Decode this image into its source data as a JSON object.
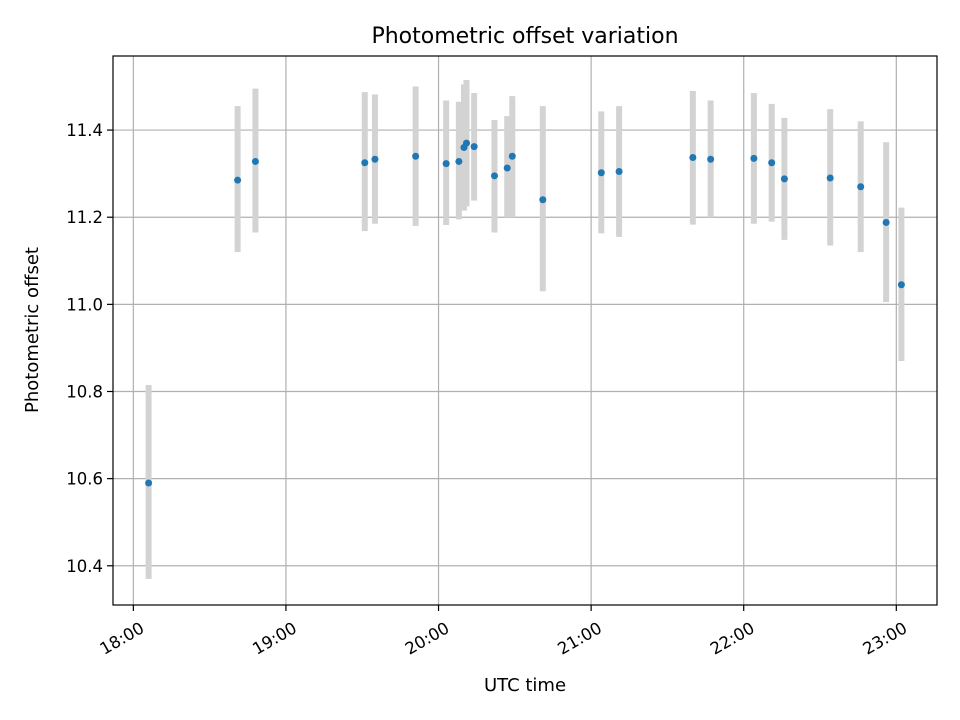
{
  "chart_data": {
    "type": "scatter",
    "title": "Photometric offset variation",
    "xlabel": "UTC time",
    "ylabel": "Photometric offset",
    "xlim": [
      "17:52",
      "23:16"
    ],
    "ylim": [
      10.31,
      11.57
    ],
    "x_ticks": [
      "18:00",
      "19:00",
      "20:00",
      "21:00",
      "22:00",
      "23:00"
    ],
    "y_ticks": [
      10.4,
      10.6,
      10.8,
      11.0,
      11.2,
      11.4
    ],
    "grid": true,
    "point_color": "#1f77b4",
    "errorbar_color": "#d3d3d3",
    "points": [
      {
        "x": "18:06",
        "y": 10.59,
        "ylo": 10.37,
        "yhi": 10.815
      },
      {
        "x": "18:41",
        "y": 11.285,
        "ylo": 11.12,
        "yhi": 11.455
      },
      {
        "x": "18:48",
        "y": 11.328,
        "ylo": 11.165,
        "yhi": 11.495
      },
      {
        "x": "19:31",
        "y": 11.325,
        "ylo": 11.168,
        "yhi": 11.487
      },
      {
        "x": "19:35",
        "y": 11.333,
        "ylo": 11.185,
        "yhi": 11.482
      },
      {
        "x": "19:51",
        "y": 11.34,
        "ylo": 11.18,
        "yhi": 11.5
      },
      {
        "x": "20:03",
        "y": 11.323,
        "ylo": 11.182,
        "yhi": 11.468
      },
      {
        "x": "20:08",
        "y": 11.328,
        "ylo": 11.195,
        "yhi": 11.465
      },
      {
        "x": "20:10",
        "y": 11.36,
        "ylo": 11.215,
        "yhi": 11.505
      },
      {
        "x": "20:11",
        "y": 11.37,
        "ylo": 11.225,
        "yhi": 11.515
      },
      {
        "x": "20:14",
        "y": 11.362,
        "ylo": 11.238,
        "yhi": 11.485
      },
      {
        "x": "20:22",
        "y": 11.295,
        "ylo": 11.165,
        "yhi": 11.423
      },
      {
        "x": "20:27",
        "y": 11.313,
        "ylo": 11.2,
        "yhi": 11.432
      },
      {
        "x": "20:29",
        "y": 11.34,
        "ylo": 11.2,
        "yhi": 11.478
      },
      {
        "x": "20:41",
        "y": 11.24,
        "ylo": 11.03,
        "yhi": 11.455
      },
      {
        "x": "21:04",
        "y": 11.302,
        "ylo": 11.163,
        "yhi": 11.443
      },
      {
        "x": "21:11",
        "y": 11.305,
        "ylo": 11.155,
        "yhi": 11.455
      },
      {
        "x": "21:40",
        "y": 11.337,
        "ylo": 11.183,
        "yhi": 11.49
      },
      {
        "x": "21:47",
        "y": 11.333,
        "ylo": 11.2,
        "yhi": 11.468
      },
      {
        "x": "22:04",
        "y": 11.335,
        "ylo": 11.185,
        "yhi": 11.485
      },
      {
        "x": "22:11",
        "y": 11.325,
        "ylo": 11.19,
        "yhi": 11.46
      },
      {
        "x": "22:16",
        "y": 11.288,
        "ylo": 11.148,
        "yhi": 11.428
      },
      {
        "x": "22:34",
        "y": 11.29,
        "ylo": 11.135,
        "yhi": 11.448
      },
      {
        "x": "22:46",
        "y": 11.27,
        "ylo": 11.12,
        "yhi": 11.42
      },
      {
        "x": "22:56",
        "y": 11.188,
        "ylo": 11.005,
        "yhi": 11.372
      },
      {
        "x": "23:02",
        "y": 11.045,
        "ylo": 10.87,
        "yhi": 11.222
      }
    ]
  }
}
